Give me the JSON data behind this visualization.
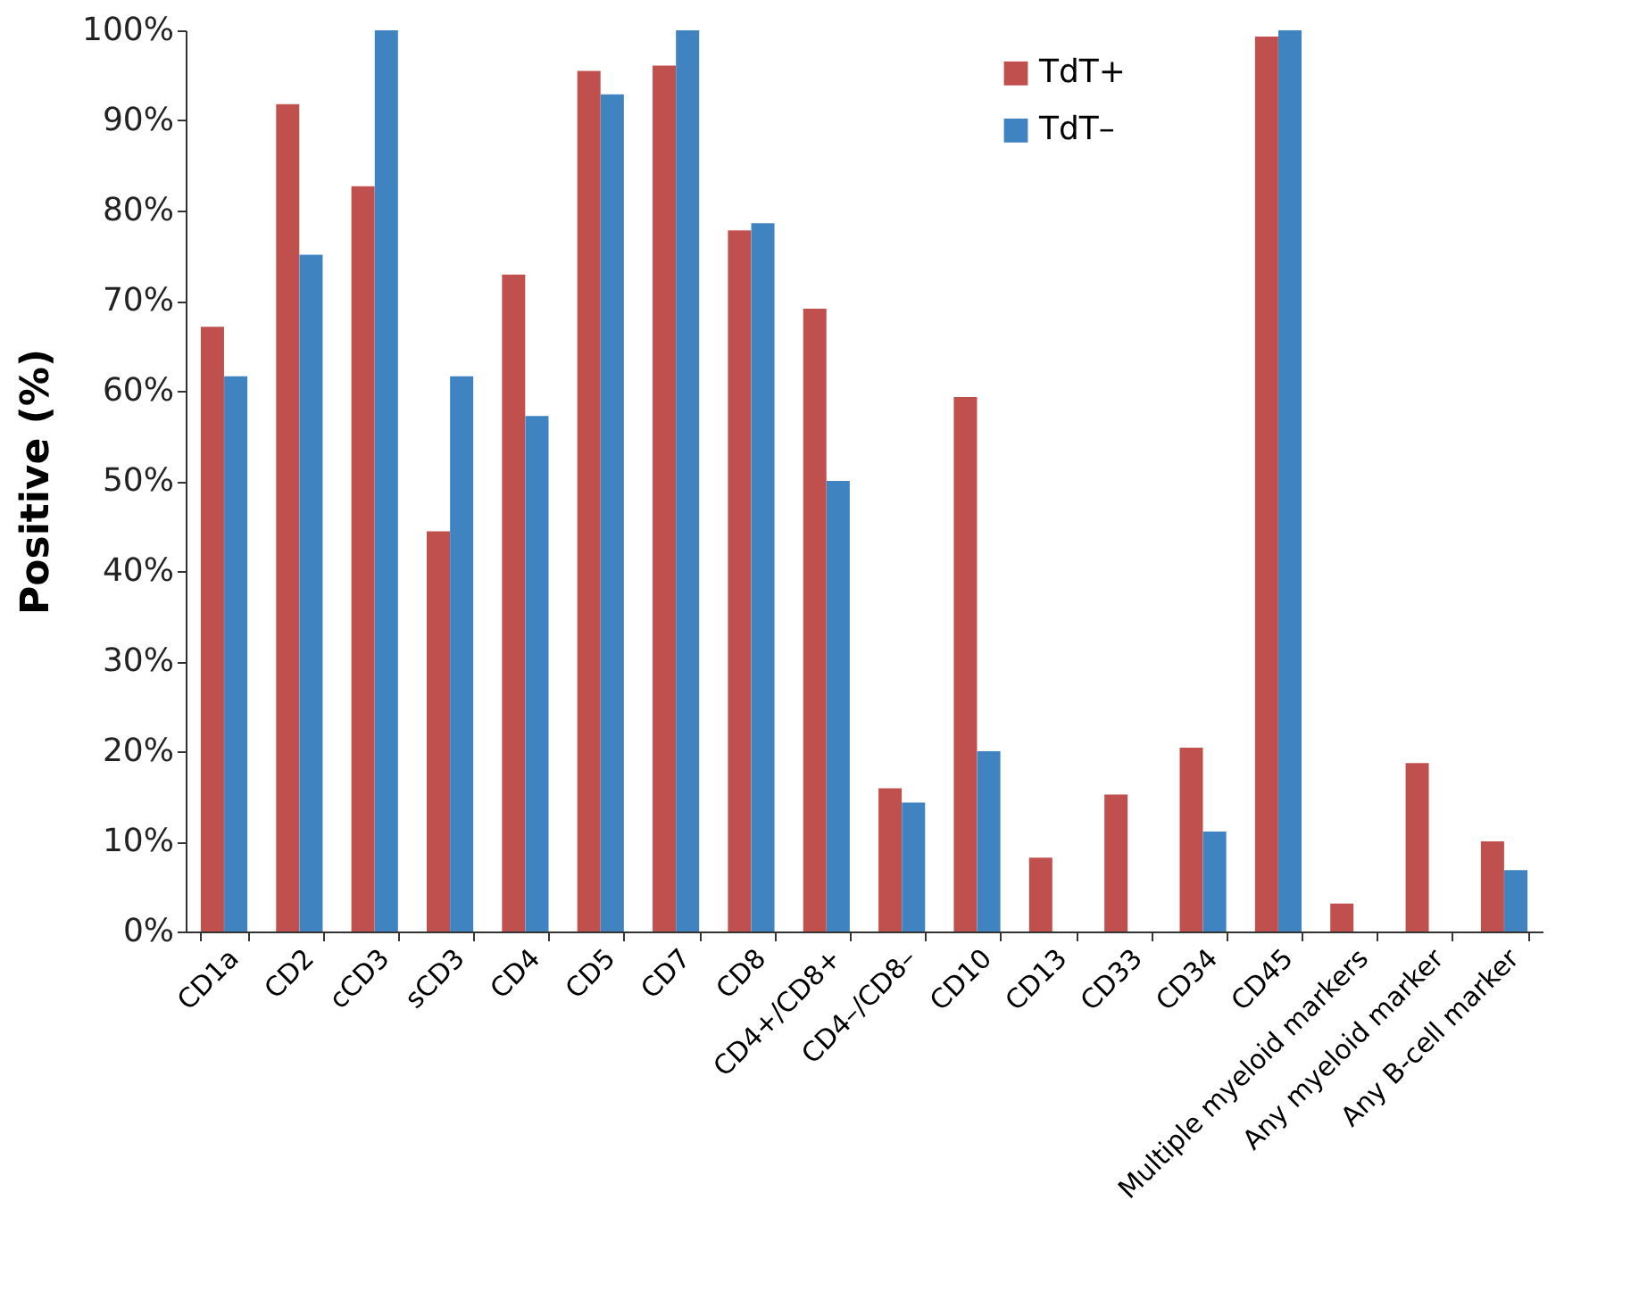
{
  "chart_data": {
    "type": "bar",
    "ylabel": "Positive (%)",
    "categories": [
      "CD1a",
      "CD2",
      "cCD3",
      "sCD3",
      "CD4",
      "CD5",
      "CD7",
      "CD8",
      "CD4+/CD8+",
      "CD4–/CD8–",
      "CD10",
      "CD13",
      "CD33",
      "CD34",
      "CD45",
      "Multiple myeloid markers",
      "Any myeloid marker",
      "Any B-cell marker"
    ],
    "series": [
      {
        "name": "TdT+",
        "color": "#c0504d",
        "values": [
          67.1,
          91.8,
          82.7,
          44.4,
          72.9,
          95.5,
          96.1,
          77.8,
          69.1,
          15.9,
          59.3,
          8.2,
          15.2,
          20.4,
          99.3,
          3.1,
          18.7,
          10.0
        ]
      },
      {
        "name": "TdT–",
        "color": "#3f84c1",
        "values": [
          61.6,
          75.1,
          100,
          61.6,
          57.2,
          92.9,
          100,
          78.6,
          50.0,
          14.3,
          20.0,
          0,
          0,
          11.1,
          100,
          0,
          0,
          6.8
        ]
      }
    ],
    "ylim": [
      0,
      100
    ],
    "yticks": [
      {
        "value": 0,
        "label": "0%"
      },
      {
        "value": 10,
        "label": "10%"
      },
      {
        "value": 20,
        "label": "20%"
      },
      {
        "value": 30,
        "label": "30%"
      },
      {
        "value": 40,
        "label": "40%"
      },
      {
        "value": 50,
        "label": "50%"
      },
      {
        "value": 60,
        "label": "60%"
      },
      {
        "value": 70,
        "label": "70%"
      },
      {
        "value": 80,
        "label": "80%"
      },
      {
        "value": 90,
        "label": "90%"
      },
      {
        "value": 100,
        "label": "100%"
      }
    ],
    "grid": false,
    "legend": "top right"
  }
}
